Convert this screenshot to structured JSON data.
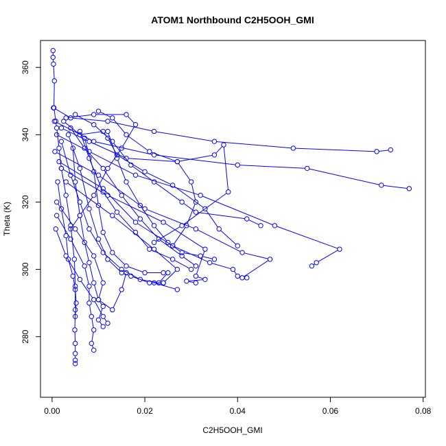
{
  "chart_data": {
    "type": "line",
    "title": "ATOM1 Northbound C2H5OOH_GMI",
    "xlabel": "C2H5OOH_GMI",
    "ylabel": "Theta (K)",
    "xlim": [
      -0.0025,
      0.0805
    ],
    "ylim": [
      262,
      368
    ],
    "xticks": [
      0.0,
      0.02,
      0.04,
      0.06,
      0.08
    ],
    "xtick_labels": [
      "0.00",
      "0.02",
      "0.04",
      "0.06",
      "0.08"
    ],
    "yticks": [
      280,
      300,
      320,
      340,
      360
    ],
    "ytick_labels": [
      "280",
      "300",
      "320",
      "340",
      "360"
    ],
    "grid": false,
    "legend": "none",
    "color": "#0000ff",
    "series": [
      {
        "points": [
          [
            0.0002,
            365
          ],
          [
            0.0002,
            363
          ],
          [
            0.0003,
            361
          ],
          [
            0.0005,
            356
          ],
          [
            0.0004,
            348
          ],
          [
            0.0008,
            344
          ],
          [
            0.001,
            342
          ],
          [
            0.0015,
            336
          ],
          [
            0.002,
            330
          ],
          [
            0.003,
            322
          ],
          [
            0.004,
            313
          ],
          [
            0.0048,
            303
          ],
          [
            0.005,
            295
          ],
          [
            0.005,
            288
          ],
          [
            0.0049,
            282
          ],
          [
            0.005,
            278
          ],
          [
            0.005,
            275
          ],
          [
            0.005,
            273
          ],
          [
            0.005,
            272
          ]
        ]
      },
      {
        "points": [
          [
            0.0003,
            348
          ],
          [
            0.004,
            345
          ],
          [
            0.012,
            344
          ],
          [
            0.022,
            341
          ],
          [
            0.035,
            338
          ],
          [
            0.052,
            336
          ],
          [
            0.07,
            335
          ],
          [
            0.073,
            335.5
          ]
        ]
      },
      {
        "points": [
          [
            0.0005,
            344
          ],
          [
            0.009,
            338
          ],
          [
            0.022,
            334
          ],
          [
            0.04,
            331
          ],
          [
            0.055,
            330
          ],
          [
            0.071,
            325
          ],
          [
            0.077,
            324
          ]
        ]
      },
      {
        "points": [
          [
            0.001,
            340
          ],
          [
            0.008,
            335
          ],
          [
            0.018,
            328
          ],
          [
            0.032,
            322
          ],
          [
            0.048,
            313
          ],
          [
            0.062,
            306
          ],
          [
            0.057,
            302
          ],
          [
            0.056,
            301
          ]
        ]
      },
      {
        "points": [
          [
            0.0006,
            335
          ],
          [
            0.01,
            328
          ],
          [
            0.02,
            318
          ],
          [
            0.031,
            312
          ],
          [
            0.041,
            305
          ],
          [
            0.047,
            303
          ],
          [
            0.041,
            297.5
          ],
          [
            0.042,
            297.5
          ]
        ]
      },
      {
        "points": [
          [
            0.002,
            330
          ],
          [
            0.012,
            322
          ],
          [
            0.024,
            314
          ],
          [
            0.033,
            306
          ],
          [
            0.031,
            298
          ],
          [
            0.033,
            297
          ],
          [
            0.029,
            296.5
          ],
          [
            0.031,
            296
          ]
        ]
      },
      {
        "points": [
          [
            0.003,
            326
          ],
          [
            0.013,
            316
          ],
          [
            0.022,
            306
          ],
          [
            0.027,
            300
          ],
          [
            0.024,
            296
          ],
          [
            0.022,
            296
          ],
          [
            0.027,
            294
          ]
        ]
      },
      {
        "points": [
          [
            0.0015,
            332
          ],
          [
            0.011,
            324
          ],
          [
            0.018,
            314
          ],
          [
            0.026,
            307
          ],
          [
            0.034,
            302
          ],
          [
            0.039,
            300
          ],
          [
            0.04,
            298
          ]
        ]
      },
      {
        "points": [
          [
            0.002,
            342
          ],
          [
            0.008,
            338
          ],
          [
            0.016,
            333
          ],
          [
            0.027,
            332
          ],
          [
            0.035,
            334
          ],
          [
            0.037,
            337
          ],
          [
            0.038,
            323
          ],
          [
            0.028,
            313
          ],
          [
            0.022,
            308
          ]
        ]
      },
      {
        "points": [
          [
            0.003,
            345
          ],
          [
            0.009,
            346
          ],
          [
            0.016,
            346
          ],
          [
            0.018,
            343
          ],
          [
            0.015,
            336
          ],
          [
            0.012,
            330
          ],
          [
            0.009,
            322
          ],
          [
            0.006,
            316
          ],
          [
            0.004,
            312
          ]
        ]
      },
      {
        "points": [
          [
            0.001,
            320
          ],
          [
            0.005,
            312
          ],
          [
            0.009,
            304
          ],
          [
            0.011,
            296
          ],
          [
            0.01,
            291
          ],
          [
            0.013,
            288
          ],
          [
            0.015,
            294
          ],
          [
            0.016,
            299
          ]
        ]
      },
      {
        "points": [
          [
            0.001,
            316
          ],
          [
            0.004,
            309
          ],
          [
            0.007,
            301
          ],
          [
            0.008,
            295
          ],
          [
            0.008,
            290
          ],
          [
            0.0085,
            286
          ],
          [
            0.009,
            282
          ],
          [
            0.0085,
            278
          ],
          [
            0.009,
            276
          ]
        ]
      },
      {
        "points": [
          [
            0.0008,
            312
          ],
          [
            0.003,
            304
          ],
          [
            0.006,
            297
          ],
          [
            0.009,
            291
          ],
          [
            0.011,
            286
          ],
          [
            0.012,
            284
          ]
        ]
      },
      {
        "points": [
          [
            0.0025,
            344
          ],
          [
            0.006,
            340
          ],
          [
            0.011,
            341
          ],
          [
            0.012,
            339
          ],
          [
            0.014,
            334
          ],
          [
            0.02,
            329
          ],
          [
            0.026,
            325
          ],
          [
            0.033,
            318
          ],
          [
            0.036,
            312
          ],
          [
            0.04,
            307
          ]
        ]
      },
      {
        "points": [
          [
            0.004,
            342
          ],
          [
            0.007,
            336
          ],
          [
            0.011,
            330
          ],
          [
            0.015,
            322
          ],
          [
            0.019,
            315
          ],
          [
            0.023,
            309
          ],
          [
            0.028,
            304
          ],
          [
            0.031,
            301
          ]
        ]
      },
      {
        "points": [
          [
            0.002,
            338
          ],
          [
            0.004,
            328
          ],
          [
            0.006,
            320
          ],
          [
            0.008,
            312
          ],
          [
            0.011,
            305
          ],
          [
            0.015,
            300
          ],
          [
            0.019,
            297
          ],
          [
            0.023,
            296
          ],
          [
            0.025,
            299
          ]
        ]
      },
      {
        "points": [
          [
            0.005,
            346
          ],
          [
            0.009,
            343
          ],
          [
            0.013,
            338
          ],
          [
            0.017,
            331
          ],
          [
            0.022,
            326
          ],
          [
            0.028,
            320
          ],
          [
            0.031,
            317
          ],
          [
            0.042,
            315
          ],
          [
            0.045,
            313
          ]
        ]
      },
      {
        "points": [
          [
            0.006,
            341
          ],
          [
            0.008,
            333
          ],
          [
            0.011,
            323
          ],
          [
            0.014,
            317
          ],
          [
            0.018,
            311
          ],
          [
            0.021,
            306
          ],
          [
            0.026,
            303
          ],
          [
            0.03,
            300
          ]
        ]
      },
      {
        "points": [
          [
            0.0035,
            340
          ],
          [
            0.006,
            330
          ],
          [
            0.008,
            318
          ],
          [
            0.01,
            309
          ],
          [
            0.012,
            303
          ],
          [
            0.015,
            299
          ],
          [
            0.017,
            298
          ],
          [
            0.021,
            296
          ],
          [
            0.024,
            296
          ]
        ]
      },
      {
        "points": [
          [
            0.01,
            347
          ],
          [
            0.013,
            345
          ],
          [
            0.016,
            340
          ],
          [
            0.021,
            335
          ],
          [
            0.027,
            332
          ],
          [
            0.03,
            326
          ],
          [
            0.031,
            320
          ],
          [
            0.029,
            313
          ],
          [
            0.026,
            307
          ]
        ]
      },
      {
        "points": [
          [
            0.012,
            341
          ],
          [
            0.014,
            333
          ],
          [
            0.016,
            326
          ],
          [
            0.019,
            319
          ],
          [
            0.022,
            313
          ],
          [
            0.025,
            308
          ],
          [
            0.028,
            305
          ],
          [
            0.032,
            304
          ],
          [
            0.035,
            303
          ]
        ]
      },
      {
        "points": [
          [
            0.007,
            339
          ],
          [
            0.009,
            329
          ],
          [
            0.01,
            319
          ],
          [
            0.011,
            311
          ],
          [
            0.013,
            305
          ],
          [
            0.016,
            301
          ],
          [
            0.02,
            299
          ],
          [
            0.024,
            299
          ]
        ]
      },
      {
        "points": [
          [
            0.0045,
            336
          ],
          [
            0.005,
            326
          ],
          [
            0.006,
            316
          ],
          [
            0.007,
            308
          ],
          [
            0.008,
            302
          ],
          [
            0.009,
            296
          ],
          [
            0.01,
            291
          ],
          [
            0.011,
            289
          ],
          [
            0.01,
            285
          ],
          [
            0.011,
            283
          ]
        ]
      },
      {
        "points": [
          [
            0.0012,
            326
          ],
          [
            0.002,
            318
          ],
          [
            0.003,
            310
          ],
          [
            0.0035,
            303
          ],
          [
            0.0045,
            298
          ],
          [
            0.005,
            294
          ],
          [
            0.0052,
            290
          ],
          [
            0.005,
            286
          ]
        ]
      }
    ]
  }
}
